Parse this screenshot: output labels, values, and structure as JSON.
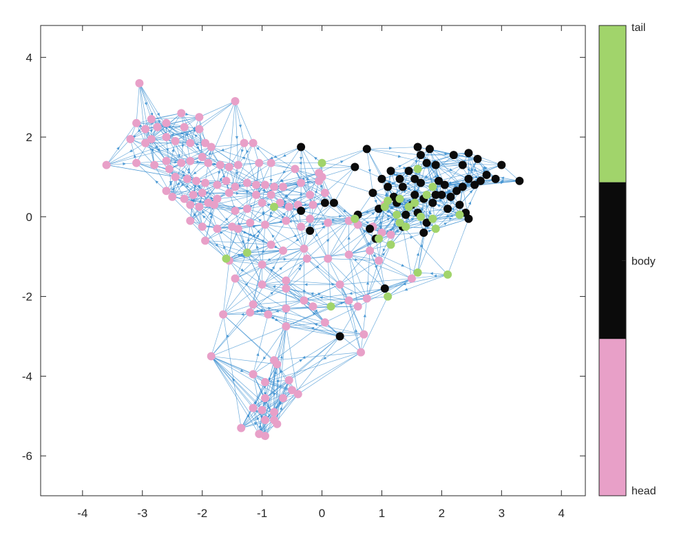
{
  "chart_data": {
    "type": "scatter",
    "title": "",
    "xlabel": "",
    "ylabel": "",
    "xlim": [
      -4.7,
      4.4
    ],
    "ylim": [
      -7,
      4.8
    ],
    "xticks": [
      "-4",
      "-3",
      "-2",
      "-1",
      "0",
      "1",
      "2",
      "3",
      "4"
    ],
    "yticks": [
      "4",
      "2",
      "0",
      "-2",
      "-4",
      "-6"
    ],
    "grid": false,
    "edge_color": "#3b8fd0",
    "colorbar": {
      "labels": [
        "tail",
        "body",
        "head"
      ],
      "colors": [
        "#a1d46b",
        "#0b0b0b",
        "#e8a0c8"
      ]
    },
    "series": [
      {
        "color": "#e8a0c8",
        "points": [
          [
            -3.05,
            3.35
          ],
          [
            -1.45,
            2.9
          ],
          [
            -2.35,
            2.6
          ],
          [
            -2.05,
            2.5
          ],
          [
            -2.85,
            2.45
          ],
          [
            -3.1,
            2.35
          ],
          [
            -2.95,
            2.2
          ],
          [
            -2.75,
            2.25
          ],
          [
            -2.6,
            2.35
          ],
          [
            -2.3,
            2.25
          ],
          [
            -2.05,
            2.2
          ],
          [
            -3.2,
            1.95
          ],
          [
            -2.85,
            1.95
          ],
          [
            -2.6,
            2.0
          ],
          [
            -2.45,
            1.9
          ],
          [
            -2.2,
            1.85
          ],
          [
            -1.95,
            1.85
          ],
          [
            -1.85,
            1.75
          ],
          [
            -1.3,
            1.85
          ],
          [
            -1.15,
            1.85
          ],
          [
            -2.95,
            1.85
          ],
          [
            -3.6,
            1.3
          ],
          [
            -3.1,
            1.35
          ],
          [
            -2.8,
            1.3
          ],
          [
            -2.6,
            1.4
          ],
          [
            -2.55,
            1.2
          ],
          [
            -2.35,
            1.35
          ],
          [
            -2.2,
            1.4
          ],
          [
            -2.0,
            1.5
          ],
          [
            -1.9,
            1.35
          ],
          [
            -1.7,
            1.3
          ],
          [
            -1.55,
            1.25
          ],
          [
            -1.4,
            1.3
          ],
          [
            -1.05,
            1.35
          ],
          [
            -0.85,
            1.35
          ],
          [
            -0.45,
            1.2
          ],
          [
            -0.05,
            1.1
          ],
          [
            -2.45,
            1.0
          ],
          [
            -2.25,
            0.95
          ],
          [
            -2.1,
            0.9
          ],
          [
            -1.95,
            0.85
          ],
          [
            -1.75,
            0.8
          ],
          [
            -1.6,
            0.9
          ],
          [
            -1.45,
            0.75
          ],
          [
            -1.25,
            0.85
          ],
          [
            -1.1,
            0.8
          ],
          [
            -0.95,
            0.8
          ],
          [
            -0.8,
            0.75
          ],
          [
            -0.65,
            0.75
          ],
          [
            -0.35,
            0.85
          ],
          [
            0.0,
            1.0
          ],
          [
            -0.05,
            0.9
          ],
          [
            -2.6,
            0.65
          ],
          [
            -2.5,
            0.5
          ],
          [
            -2.3,
            0.45
          ],
          [
            -2.15,
            0.55
          ],
          [
            -2.0,
            0.6
          ],
          [
            -1.9,
            0.35
          ],
          [
            -1.75,
            0.45
          ],
          [
            -1.55,
            0.6
          ],
          [
            -1.45,
            0.15
          ],
          [
            -1.25,
            0.2
          ],
          [
            -1.1,
            0.55
          ],
          [
            -1.0,
            0.35
          ],
          [
            -0.85,
            0.55
          ],
          [
            -0.7,
            0.35
          ],
          [
            -0.55,
            0.25
          ],
          [
            -0.4,
            0.3
          ],
          [
            -0.2,
            0.55
          ],
          [
            0.05,
            0.6
          ],
          [
            -2.2,
            0.3
          ],
          [
            -2.05,
            0.25
          ],
          [
            -1.8,
            0.3
          ],
          [
            -2.2,
            -0.1
          ],
          [
            -2.0,
            -0.25
          ],
          [
            -1.75,
            -0.3
          ],
          [
            -1.5,
            -0.25
          ],
          [
            -1.4,
            -0.3
          ],
          [
            -1.2,
            -0.15
          ],
          [
            -0.95,
            -0.2
          ],
          [
            -0.6,
            -0.1
          ],
          [
            -0.35,
            -0.25
          ],
          [
            -0.2,
            -0.05
          ],
          [
            0.1,
            -0.15
          ],
          [
            0.45,
            -0.1
          ],
          [
            0.6,
            -0.2
          ],
          [
            0.85,
            -0.25
          ],
          [
            1.0,
            -0.4
          ],
          [
            1.15,
            -0.45
          ],
          [
            -1.95,
            -0.6
          ],
          [
            -1.25,
            -0.9
          ],
          [
            -0.85,
            -0.7
          ],
          [
            -0.65,
            -0.85
          ],
          [
            -0.3,
            -0.8
          ],
          [
            -0.25,
            -1.05
          ],
          [
            0.1,
            -1.05
          ],
          [
            0.45,
            -0.95
          ],
          [
            0.8,
            -0.85
          ],
          [
            0.95,
            -1.1
          ],
          [
            -1.55,
            -1.1
          ],
          [
            -1.0,
            -1.2
          ],
          [
            -1.45,
            -1.55
          ],
          [
            -1.0,
            -1.7
          ],
          [
            -0.6,
            -1.6
          ],
          [
            -0.6,
            -1.8
          ],
          [
            -0.6,
            -2.3
          ],
          [
            -0.3,
            -2.1
          ],
          [
            -0.15,
            -2.25
          ],
          [
            0.3,
            -1.7
          ],
          [
            0.45,
            -2.1
          ],
          [
            0.75,
            -2.05
          ],
          [
            0.6,
            -2.25
          ],
          [
            -1.15,
            -2.2
          ],
          [
            -0.9,
            -2.45
          ],
          [
            -1.2,
            -2.4
          ],
          [
            -1.65,
            -2.45
          ],
          [
            -0.6,
            -2.75
          ],
          [
            0.05,
            -2.65
          ],
          [
            0.7,
            -2.95
          ],
          [
            0.65,
            -3.4
          ],
          [
            -1.85,
            -3.5
          ],
          [
            -0.8,
            -3.6
          ],
          [
            -0.75,
            -3.7
          ],
          [
            -1.15,
            -3.95
          ],
          [
            -0.95,
            -4.15
          ],
          [
            -0.55,
            -4.1
          ],
          [
            -0.5,
            -4.35
          ],
          [
            -0.4,
            -4.45
          ],
          [
            -0.95,
            -4.55
          ],
          [
            -0.65,
            -4.55
          ],
          [
            -1.15,
            -4.8
          ],
          [
            -1.0,
            -4.85
          ],
          [
            -0.8,
            -4.9
          ],
          [
            -0.8,
            -5.1
          ],
          [
            -0.95,
            -5.1
          ],
          [
            -0.75,
            -5.2
          ],
          [
            -1.35,
            -5.3
          ],
          [
            -1.05,
            -5.45
          ],
          [
            -0.95,
            -5.5
          ],
          [
            1.05,
            0.3
          ],
          [
            1.5,
            -1.55
          ],
          [
            -0.15,
            0.3
          ]
        ]
      },
      {
        "color": "#0b0b0b",
        "points": [
          [
            -0.35,
            1.75
          ],
          [
            0.55,
            1.25
          ],
          [
            0.75,
            1.7
          ],
          [
            1.15,
            1.15
          ],
          [
            1.3,
            0.95
          ],
          [
            1.1,
            0.75
          ],
          [
            1.2,
            0.5
          ],
          [
            1.35,
            0.75
          ],
          [
            1.45,
            1.15
          ],
          [
            1.55,
            0.95
          ],
          [
            1.6,
            1.75
          ],
          [
            1.65,
            1.55
          ],
          [
            1.75,
            1.35
          ],
          [
            1.8,
            1.7
          ],
          [
            1.9,
            1.3
          ],
          [
            1.95,
            0.9
          ],
          [
            2.05,
            0.8
          ],
          [
            1.55,
            0.55
          ],
          [
            1.7,
            0.45
          ],
          [
            1.5,
            0.3
          ],
          [
            1.25,
            0.35
          ],
          [
            1.4,
            0.05
          ],
          [
            1.6,
            0.1
          ],
          [
            1.75,
            -0.15
          ],
          [
            1.85,
            0.35
          ],
          [
            2.0,
            0.55
          ],
          [
            2.15,
            0.5
          ],
          [
            2.25,
            0.65
          ],
          [
            2.35,
            0.75
          ],
          [
            2.55,
            0.8
          ],
          [
            2.2,
            1.55
          ],
          [
            2.35,
            1.3
          ],
          [
            2.45,
            1.6
          ],
          [
            2.6,
            1.45
          ],
          [
            2.75,
            1.05
          ],
          [
            2.9,
            0.95
          ],
          [
            3.0,
            1.3
          ],
          [
            3.3,
            0.9
          ],
          [
            2.65,
            0.9
          ],
          [
            2.45,
            0.95
          ],
          [
            2.3,
            0.3
          ],
          [
            2.4,
            0.1
          ],
          [
            2.45,
            -0.05
          ],
          [
            1.0,
            0.95
          ],
          [
            0.85,
            0.6
          ],
          [
            0.95,
            0.2
          ],
          [
            0.8,
            -0.3
          ],
          [
            0.9,
            -0.55
          ],
          [
            0.6,
            0.05
          ],
          [
            1.35,
            -0.25
          ],
          [
            1.65,
            0.85
          ],
          [
            1.9,
            0.55
          ],
          [
            2.1,
            0.2
          ],
          [
            0.05,
            0.35
          ],
          [
            0.2,
            0.35
          ],
          [
            -0.2,
            -0.35
          ],
          [
            -0.35,
            0.15
          ],
          [
            1.05,
            -1.8
          ],
          [
            0.3,
            -3.0
          ],
          [
            1.7,
            -0.4
          ]
        ]
      },
      {
        "color": "#a1d46b",
        "points": [
          [
            0.0,
            1.35
          ],
          [
            1.6,
            1.2
          ],
          [
            1.85,
            0.75
          ],
          [
            1.1,
            0.4
          ],
          [
            1.3,
            0.45
          ],
          [
            1.45,
            0.25
          ],
          [
            1.55,
            0.35
          ],
          [
            1.65,
            0.0
          ],
          [
            1.75,
            0.55
          ],
          [
            1.3,
            -0.15
          ],
          [
            1.4,
            -0.25
          ],
          [
            1.85,
            -0.05
          ],
          [
            1.9,
            -0.3
          ],
          [
            2.3,
            0.05
          ],
          [
            1.05,
            0.25
          ],
          [
            0.55,
            -0.05
          ],
          [
            0.95,
            -0.55
          ],
          [
            1.15,
            -0.7
          ],
          [
            -0.8,
            0.25
          ],
          [
            -1.25,
            -0.9
          ],
          [
            -1.6,
            -1.05
          ],
          [
            1.6,
            -1.4
          ],
          [
            2.1,
            -1.45
          ],
          [
            1.1,
            -2.0
          ],
          [
            0.15,
            -2.25
          ],
          [
            1.25,
            0.05
          ]
        ]
      }
    ]
  }
}
